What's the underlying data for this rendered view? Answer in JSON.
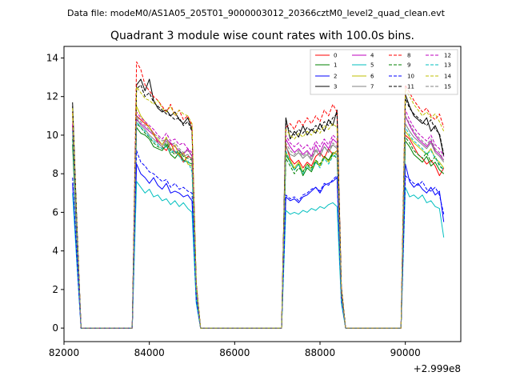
{
  "figure": {
    "suptitle": "Data file: modeM0/AS1A05_205T01_9000003012_20366cztM0_level2_quad_clean.evt"
  },
  "chart_data": {
    "type": "line",
    "title": "Quadrant 3 module wise count rates with 100.0s bins.",
    "xlabel": "",
    "ylabel": "",
    "x_offset_label": "+2.999e8",
    "xlim": [
      82000,
      91300
    ],
    "ylim": [
      -0.7,
      14.6
    ],
    "x_ticks": [
      82000,
      84000,
      86000,
      88000,
      90000
    ],
    "x_tick_labels": [
      "82000",
      "84000",
      "86000",
      "88000",
      "90000"
    ],
    "y_ticks": [
      0,
      2,
      4,
      6,
      8,
      10,
      12,
      14
    ],
    "y_tick_labels": [
      "0",
      "2",
      "4",
      "6",
      "8",
      "10",
      "12",
      "14"
    ],
    "legend_location": "upper right",
    "segments": [
      {
        "x": [
          82200,
          82300,
          82400
        ]
      },
      {
        "x": [
          83600,
          83700,
          83800,
          83900,
          84000,
          84100,
          84200,
          84300,
          84400,
          84500,
          84600,
          84700,
          84800,
          84900,
          85000,
          85100,
          85200
        ]
      },
      {
        "x": [
          87100,
          87200,
          87300,
          87400,
          87500,
          87600,
          87700,
          87800,
          87900,
          88000,
          88100,
          88200,
          88300,
          88400,
          88500,
          88600
        ]
      },
      {
        "x": [
          89900,
          90000,
          90100,
          90200,
          90300,
          90400,
          90500,
          90600,
          90700,
          90800,
          90900
        ]
      }
    ],
    "gap_x": [
      [
        82400,
        83600
      ],
      [
        85200,
        87100
      ],
      [
        88600,
        89900
      ]
    ],
    "series": [
      {
        "name": "0",
        "color": "#ff0000",
        "dash": false,
        "segments": [
          [
            10.5,
            5.0,
            0.0
          ],
          [
            0.0,
            11.0,
            10.8,
            10.6,
            10.4,
            10.1,
            9.6,
            9.4,
            9.2,
            9.6,
            9.1,
            9.0,
            8.6,
            8.9,
            8.8,
            2.0,
            0.0
          ],
          [
            0.0,
            9.5,
            8.8,
            8.5,
            8.7,
            8.3,
            8.6,
            8.4,
            8.9,
            9.1,
            8.8,
            9.3,
            9.0,
            9.2,
            1.8,
            0.0
          ],
          [
            0.0,
            10.0,
            9.8,
            9.4,
            9.0,
            8.8,
            8.5,
            8.7,
            8.4,
            7.9,
            8.3
          ]
        ]
      },
      {
        "name": "1",
        "color": "#008000",
        "dash": false,
        "segments": [
          [
            9.5,
            4.6,
            0.0
          ],
          [
            0.0,
            10.4,
            10.1,
            10.0,
            9.8,
            9.4,
            9.3,
            9.2,
            9.5,
            9.0,
            8.8,
            9.1,
            8.7,
            8.6,
            8.5,
            1.9,
            0.0
          ],
          [
            0.0,
            9.0,
            8.6,
            8.2,
            8.5,
            7.9,
            8.3,
            8.1,
            8.6,
            8.4,
            8.9,
            8.7,
            9.1,
            9.0,
            1.7,
            0.0
          ],
          [
            0.0,
            9.7,
            9.4,
            9.0,
            8.8,
            8.6,
            8.9,
            8.4,
            8.6,
            8.2,
            8.0
          ]
        ]
      },
      {
        "name": "2",
        "color": "#0000ff",
        "dash": false,
        "segments": [
          [
            7.5,
            3.6,
            0.0
          ],
          [
            0.0,
            8.5,
            8.0,
            7.8,
            7.5,
            7.8,
            7.4,
            7.2,
            7.5,
            7.0,
            7.1,
            7.0,
            6.8,
            6.9,
            6.6,
            1.4,
            0.0
          ],
          [
            0.0,
            6.8,
            6.6,
            6.7,
            6.5,
            6.8,
            6.9,
            7.1,
            7.3,
            7.0,
            7.4,
            7.5,
            7.6,
            7.8,
            1.5,
            0.0
          ],
          [
            0.0,
            8.5,
            7.6,
            7.3,
            7.5,
            7.2,
            7.0,
            7.3,
            6.9,
            7.1,
            5.5
          ]
        ]
      },
      {
        "name": "3",
        "color": "#000000",
        "dash": false,
        "segments": [
          [
            11.7,
            5.5,
            0.0
          ],
          [
            0.0,
            12.6,
            12.9,
            12.3,
            12.9,
            11.8,
            11.4,
            11.2,
            11.3,
            11.0,
            11.2,
            10.8,
            10.6,
            10.9,
            10.3,
            2.3,
            0.0
          ],
          [
            0.0,
            10.9,
            9.8,
            10.2,
            9.9,
            10.5,
            10.0,
            10.3,
            10.1,
            10.6,
            10.2,
            10.8,
            10.5,
            11.3,
            2.1,
            0.0
          ],
          [
            0.0,
            12.1,
            11.5,
            11.0,
            10.8,
            10.6,
            10.9,
            10.2,
            10.5,
            10.0,
            8.9
          ]
        ]
      },
      {
        "name": "4",
        "color": "#bf00bf",
        "dash": false,
        "segments": [
          [
            10.3,
            4.9,
            0.0
          ],
          [
            0.0,
            10.8,
            10.6,
            10.4,
            10.2,
            10.0,
            9.7,
            9.5,
            9.8,
            9.6,
            9.4,
            9.2,
            9.0,
            9.3,
            8.9,
            2.0,
            0.0
          ],
          [
            0.0,
            9.8,
            9.4,
            9.1,
            9.3,
            9.0,
            9.2,
            8.9,
            9.5,
            9.1,
            9.6,
            9.3,
            9.8,
            9.6,
            1.8,
            0.0
          ],
          [
            0.0,
            11.0,
            10.5,
            10.1,
            9.8,
            9.6,
            9.4,
            9.7,
            9.2,
            9.0,
            8.7
          ]
        ]
      },
      {
        "name": "5",
        "color": "#00bfbf",
        "dash": false,
        "segments": [
          [
            7.0,
            3.4,
            0.0
          ],
          [
            0.0,
            7.6,
            7.3,
            7.0,
            7.2,
            6.8,
            6.9,
            6.6,
            6.7,
            6.4,
            6.6,
            6.3,
            6.5,
            6.2,
            6.0,
            1.3,
            0.0
          ],
          [
            0.0,
            6.1,
            5.9,
            6.0,
            5.9,
            6.1,
            6.0,
            6.2,
            6.1,
            6.3,
            6.2,
            6.4,
            6.5,
            6.3,
            1.3,
            0.0
          ],
          [
            0.0,
            7.3,
            6.8,
            6.9,
            6.7,
            6.9,
            6.5,
            6.6,
            6.3,
            6.2,
            4.7
          ]
        ]
      },
      {
        "name": "6",
        "color": "#bfbf00",
        "dash": false,
        "segments": [
          [
            11.1,
            5.3,
            0.0
          ],
          [
            0.0,
            11.5,
            11.0,
            10.7,
            10.4,
            10.0,
            9.8,
            9.5,
            9.9,
            9.2,
            9.5,
            8.9,
            9.1,
            8.5,
            8.4,
            1.9,
            0.0
          ],
          [
            0.0,
            9.1,
            8.7,
            8.3,
            8.6,
            8.1,
            8.5,
            8.2,
            8.7,
            8.4,
            8.9,
            8.6,
            9.0,
            9.2,
            1.7,
            0.0
          ],
          [
            0.0,
            10.2,
            9.9,
            9.6,
            9.4,
            9.2,
            9.0,
            9.3,
            8.8,
            8.6,
            8.3
          ]
        ]
      },
      {
        "name": "7",
        "color": "#808080",
        "dash": false,
        "segments": [
          [
            10.0,
            4.8,
            0.0
          ],
          [
            0.0,
            10.9,
            10.5,
            10.3,
            10.0,
            9.8,
            9.6,
            9.4,
            9.7,
            9.3,
            9.1,
            9.2,
            8.9,
            9.0,
            8.7,
            2.0,
            0.0
          ],
          [
            0.0,
            9.4,
            9.0,
            8.9,
            9.1,
            8.8,
            9.0,
            8.7,
            9.2,
            8.9,
            9.4,
            9.1,
            9.5,
            9.3,
            1.8,
            0.0
          ],
          [
            0.0,
            10.6,
            10.2,
            9.9,
            9.7,
            9.5,
            9.3,
            9.6,
            9.1,
            8.9,
            8.6
          ]
        ]
      },
      {
        "name": "8",
        "color": "#ff0000",
        "dash": true,
        "segments": [
          [
            11.2,
            5.4,
            0.0
          ],
          [
            0.0,
            13.8,
            13.4,
            12.6,
            12.3,
            12.0,
            11.8,
            11.5,
            11.2,
            11.6,
            11.0,
            11.3,
            10.8,
            11.0,
            10.5,
            2.3,
            0.0
          ],
          [
            0.0,
            10.4,
            10.6,
            10.3,
            10.8,
            10.5,
            10.9,
            10.6,
            11.0,
            10.7,
            11.3,
            11.0,
            11.6,
            11.2,
            2.1,
            0.0
          ],
          [
            0.0,
            12.6,
            12.2,
            11.8,
            11.5,
            11.2,
            11.4,
            11.0,
            10.8,
            11.1,
            10.4
          ]
        ]
      },
      {
        "name": "9",
        "color": "#008000",
        "dash": true,
        "segments": [
          [
            9.8,
            4.7,
            0.0
          ],
          [
            0.0,
            10.6,
            10.4,
            10.1,
            9.9,
            9.6,
            9.4,
            9.3,
            9.6,
            9.2,
            9.0,
            9.2,
            8.9,
            8.8,
            8.7,
            1.9,
            0.0
          ],
          [
            0.0,
            8.8,
            8.4,
            8.0,
            8.3,
            8.1,
            8.5,
            8.3,
            8.7,
            8.5,
            8.9,
            8.7,
            9.0,
            8.8,
            1.7,
            0.0
          ],
          [
            0.0,
            9.9,
            9.6,
            9.2,
            9.0,
            8.8,
            9.1,
            8.6,
            8.9,
            8.4,
            8.2
          ]
        ]
      },
      {
        "name": "10",
        "color": "#0000ff",
        "dash": true,
        "segments": [
          [
            7.8,
            3.7,
            0.0
          ],
          [
            0.0,
            9.2,
            8.6,
            8.4,
            8.1,
            8.0,
            7.8,
            7.6,
            7.7,
            7.3,
            7.5,
            7.2,
            7.3,
            7.1,
            7.0,
            1.5,
            0.0
          ],
          [
            0.0,
            6.9,
            6.7,
            6.8,
            6.6,
            6.9,
            7.0,
            7.2,
            7.3,
            7.1,
            7.5,
            7.4,
            7.7,
            7.9,
            1.5,
            0.0
          ],
          [
            0.0,
            7.9,
            7.7,
            7.5,
            7.4,
            7.6,
            7.2,
            7.1,
            7.3,
            6.9,
            5.9
          ]
        ]
      },
      {
        "name": "11",
        "color": "#000000",
        "dash": true,
        "segments": [
          [
            11.5,
            5.5,
            0.0
          ],
          [
            0.0,
            12.4,
            12.6,
            12.0,
            12.2,
            11.7,
            11.5,
            11.3,
            11.1,
            11.0,
            10.8,
            10.9,
            10.5,
            10.7,
            10.2,
            2.3,
            0.0
          ],
          [
            0.0,
            10.6,
            10.2,
            10.0,
            10.3,
            10.1,
            10.4,
            10.2,
            10.5,
            10.3,
            10.7,
            10.5,
            10.9,
            11.1,
            2.1,
            0.0
          ],
          [
            0.0,
            11.9,
            11.4,
            11.1,
            10.9,
            10.7,
            10.5,
            10.8,
            10.3,
            10.1,
            9.0
          ]
        ]
      },
      {
        "name": "12",
        "color": "#bf00bf",
        "dash": true,
        "segments": [
          [
            10.6,
            5.0,
            0.0
          ],
          [
            0.0,
            11.2,
            10.9,
            10.7,
            10.5,
            10.3,
            10.0,
            9.8,
            10.1,
            9.7,
            9.8,
            9.5,
            9.6,
            9.3,
            9.1,
            2.1,
            0.0
          ],
          [
            0.0,
            10.0,
            9.6,
            9.4,
            9.6,
            9.3,
            9.5,
            9.2,
            9.7,
            9.4,
            9.8,
            9.5,
            10.0,
            9.8,
            1.9,
            0.0
          ],
          [
            0.0,
            11.3,
            10.8,
            10.4,
            10.1,
            9.9,
            9.7,
            10.0,
            9.5,
            9.3,
            8.9
          ]
        ]
      },
      {
        "name": "13",
        "color": "#00bfbf",
        "dash": true,
        "segments": [
          [
            10.2,
            4.9,
            0.0
          ],
          [
            0.0,
            10.7,
            10.4,
            10.2,
            9.9,
            9.7,
            9.5,
            9.3,
            9.4,
            9.1,
            9.2,
            8.9,
            8.6,
            8.7,
            8.1,
            1.9,
            0.0
          ],
          [
            0.0,
            9.2,
            8.6,
            8.2,
            8.5,
            8.0,
            8.4,
            8.2,
            8.6,
            8.3,
            8.8,
            8.5,
            8.9,
            9.0,
            1.7,
            0.0
          ],
          [
            0.0,
            10.4,
            10.0,
            9.7,
            9.5,
            9.3,
            9.0,
            9.2,
            8.8,
            8.5,
            8.2
          ]
        ]
      },
      {
        "name": "14",
        "color": "#bfbf00",
        "dash": true,
        "segments": [
          [
            11.4,
            5.4,
            0.0
          ],
          [
            0.0,
            12.5,
            12.2,
            11.9,
            11.8,
            11.6,
            11.8,
            11.4,
            11.2,
            11.5,
            11.0,
            11.3,
            11.1,
            11.0,
            10.6,
            2.3,
            0.0
          ],
          [
            0.0,
            10.3,
            10.0,
            9.8,
            10.1,
            9.9,
            10.2,
            10.0,
            10.3,
            10.1,
            10.5,
            10.3,
            10.6,
            10.4,
            2.0,
            0.0
          ],
          [
            0.0,
            12.4,
            12.0,
            11.6,
            11.3,
            11.0,
            11.2,
            10.9,
            11.1,
            10.7,
            10.2
          ]
        ]
      },
      {
        "name": "15",
        "color": "#808080",
        "dash": true,
        "segments": [
          [
            10.4,
            5.0,
            0.0
          ],
          [
            0.0,
            11.0,
            10.7,
            10.5,
            10.3,
            10.1,
            9.9,
            9.7,
            9.8,
            9.5,
            9.6,
            9.3,
            9.1,
            9.2,
            8.9,
            2.0,
            0.0
          ],
          [
            0.0,
            9.6,
            9.2,
            9.0,
            9.2,
            8.9,
            9.1,
            8.8,
            9.3,
            9.0,
            9.4,
            9.2,
            9.6,
            9.4,
            1.8,
            0.0
          ],
          [
            0.0,
            11.0,
            10.6,
            10.2,
            9.9,
            9.7,
            9.5,
            9.8,
            9.3,
            9.1,
            8.7
          ]
        ]
      }
    ]
  }
}
